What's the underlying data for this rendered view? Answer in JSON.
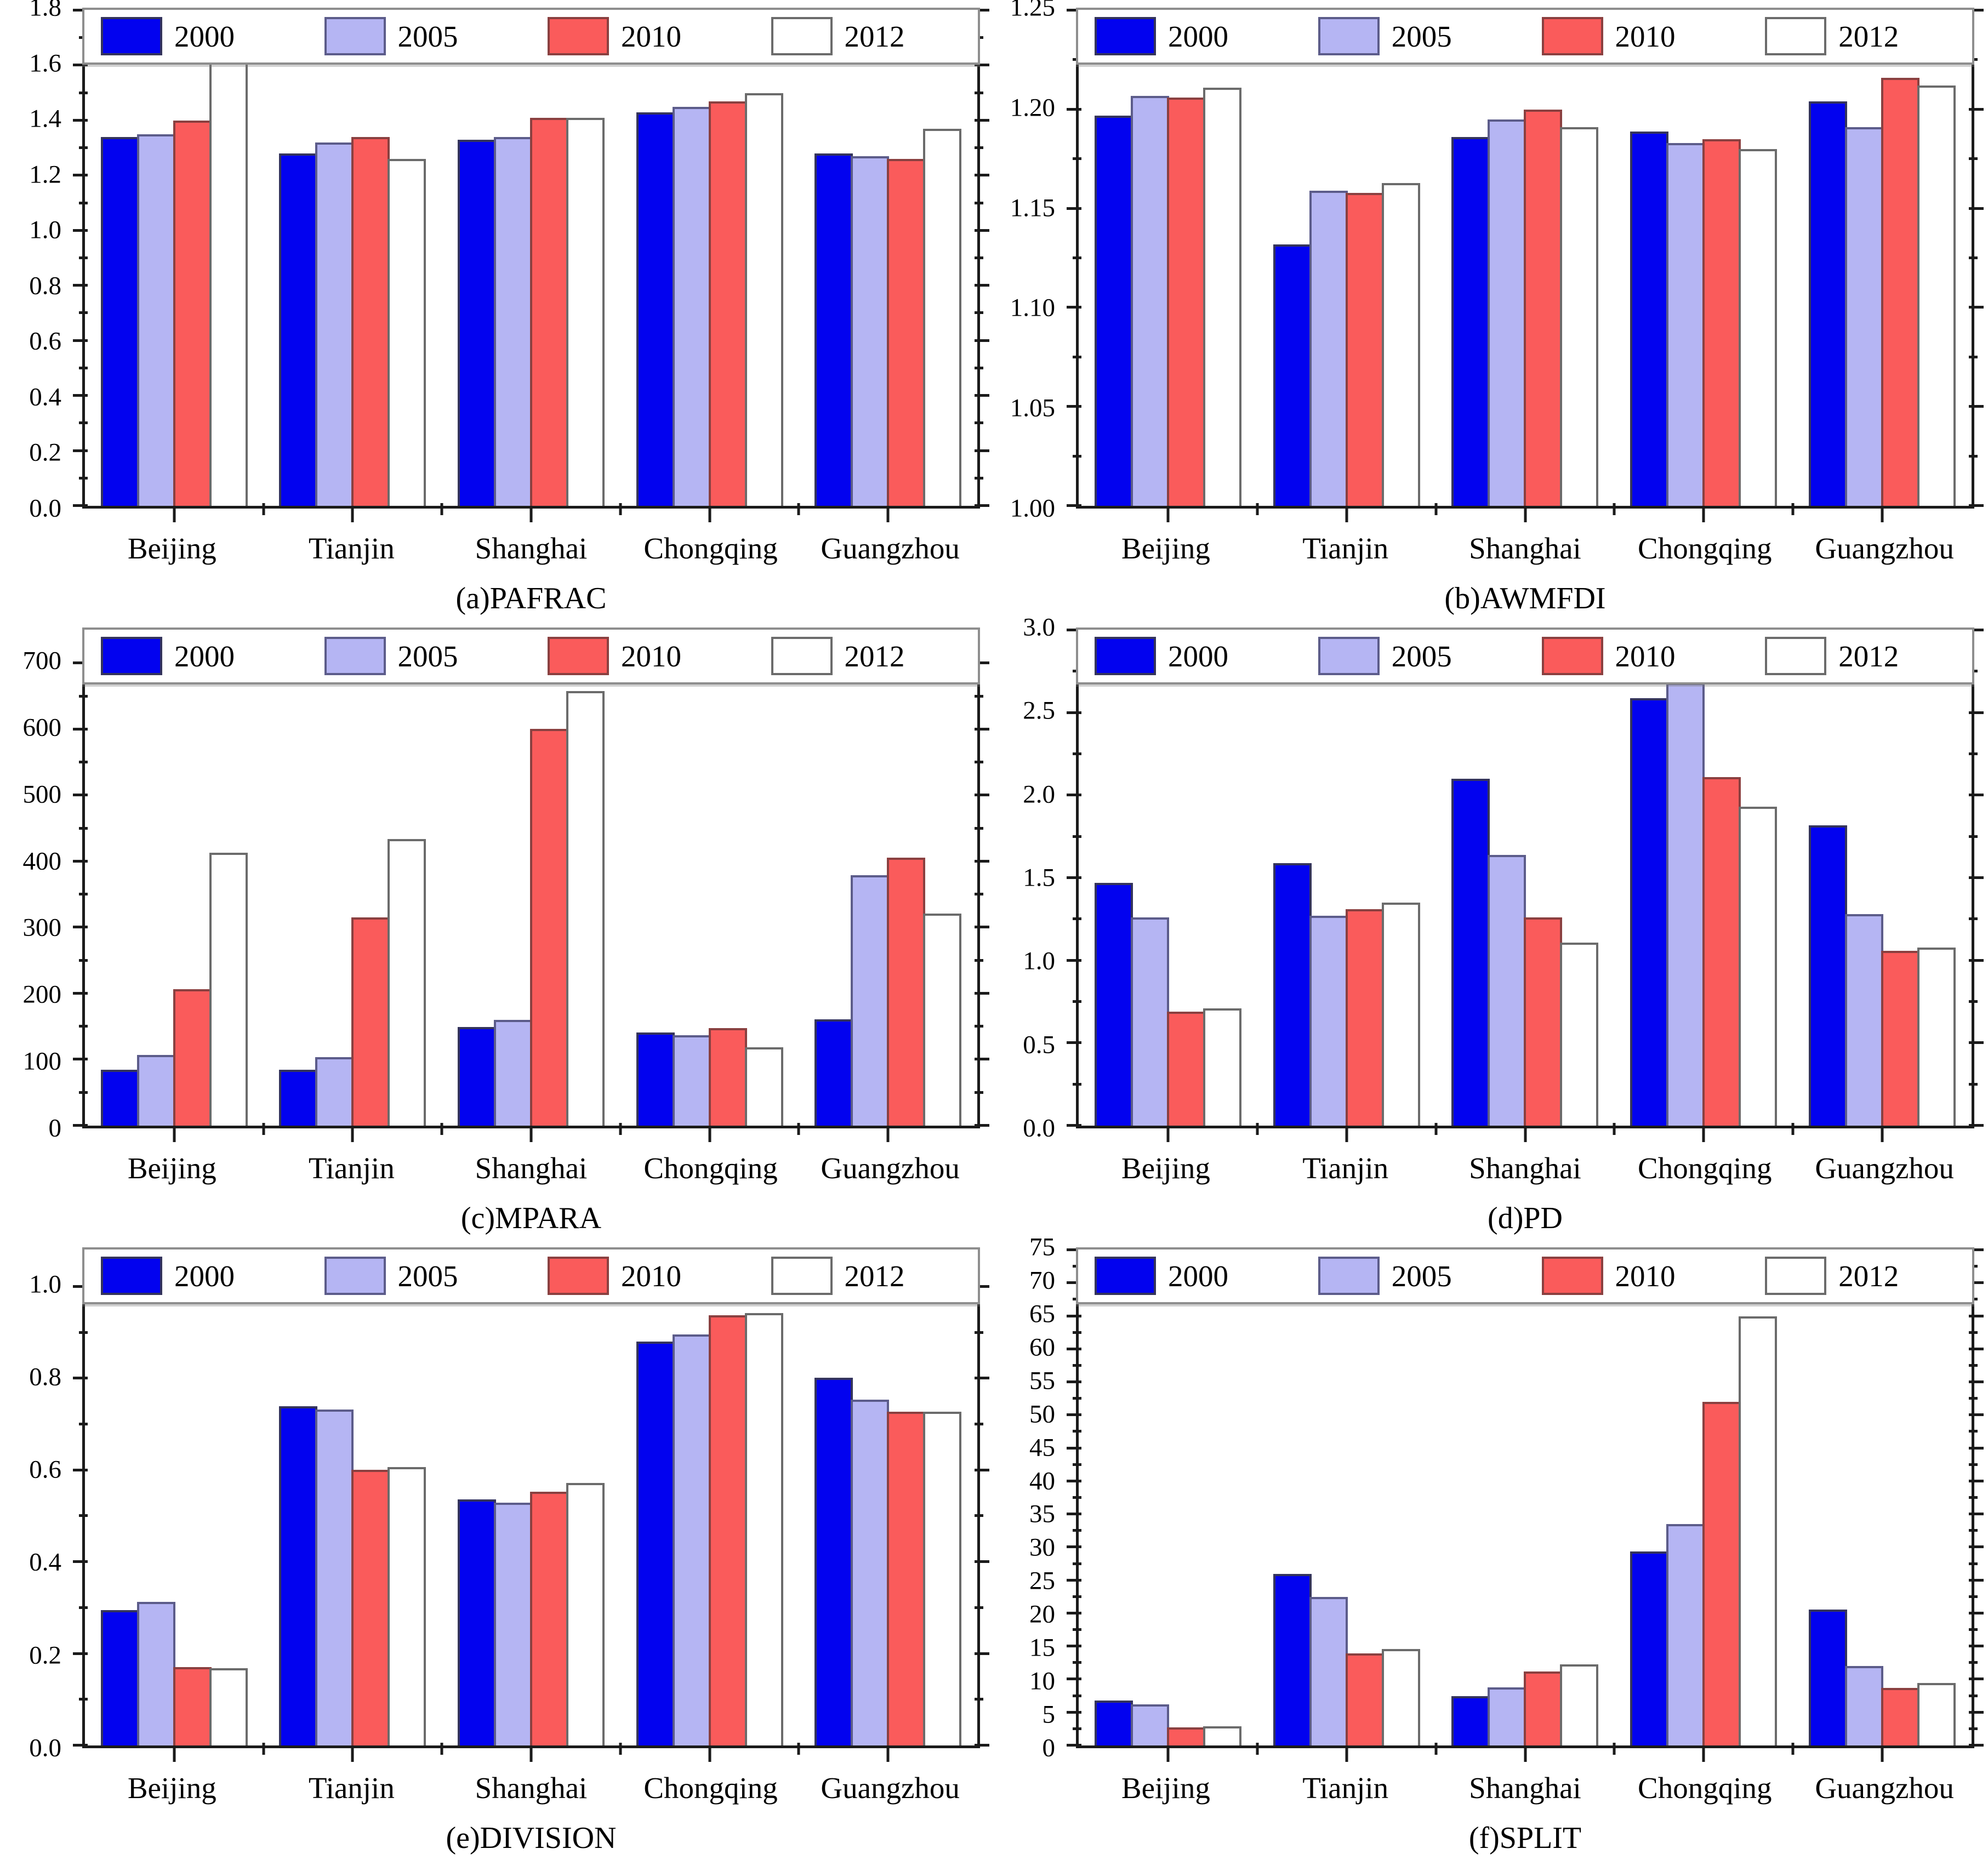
{
  "figure": {
    "background": "#ffffff",
    "axis_color": "#1b1b1b",
    "categories": [
      "Beijing",
      "Tianjin",
      "Shanghai",
      "Chongqing",
      "Guangzhou"
    ],
    "years": [
      "2000",
      "2005",
      "2010",
      "2012"
    ]
  },
  "legend": {
    "position": "top-inside-full-width",
    "items": [
      {
        "label": "2000",
        "fill": "#0202EF",
        "border": "#34345c"
      },
      {
        "label": "2005",
        "fill": "#B5B5F3",
        "border": "#5c5c8a"
      },
      {
        "label": "2010",
        "fill": "#FA5B5B",
        "border": "#8a4040"
      },
      {
        "label": "2012",
        "fill": "#FFFFFF",
        "border": "#6b6b6b"
      }
    ]
  },
  "chart_data": [
    {
      "id": "a",
      "type": "bar",
      "title": "(a)PAFRAC",
      "categories": [
        "Beijing",
        "Tianjin",
        "Shanghai",
        "Chongqing",
        "Guangzhou"
      ],
      "series": [
        {
          "name": "2000",
          "values": [
            1.34,
            1.28,
            1.33,
            1.43,
            1.28
          ]
        },
        {
          "name": "2005",
          "values": [
            1.35,
            1.32,
            1.34,
            1.45,
            1.27
          ]
        },
        {
          "name": "2010",
          "values": [
            1.4,
            1.34,
            1.41,
            1.47,
            1.26
          ]
        },
        {
          "name": "2012",
          "values": [
            1.62,
            1.26,
            1.41,
            1.5,
            1.37
          ]
        }
      ],
      "ylim": [
        0,
        1.8
      ],
      "ytick_max": 1.8,
      "ytick_step": 0.2,
      "y_decimals": 1,
      "grid": false
    },
    {
      "id": "b",
      "type": "bar",
      "title": "(b)AWMFDI",
      "categories": [
        "Beijing",
        "Tianjin",
        "Shanghai",
        "Chongqing",
        "Guangzhou"
      ],
      "series": [
        {
          "name": "2000",
          "values": [
            1.197,
            1.132,
            1.186,
            1.189,
            1.204
          ]
        },
        {
          "name": "2005",
          "values": [
            1.207,
            1.159,
            1.195,
            1.183,
            1.191
          ]
        },
        {
          "name": "2010",
          "values": [
            1.206,
            1.158,
            1.2,
            1.185,
            1.216
          ]
        },
        {
          "name": "2012",
          "values": [
            1.211,
            1.163,
            1.191,
            1.18,
            1.212
          ]
        }
      ],
      "ylim": [
        1.0,
        1.25
      ],
      "ytick_max": 1.25,
      "ytick_step": 0.05,
      "y_decimals": 2,
      "grid": false
    },
    {
      "id": "c",
      "type": "bar",
      "title": "(c)MPARA",
      "categories": [
        "Beijing",
        "Tianjin",
        "Shanghai",
        "Chongqing",
        "Guangzhou"
      ],
      "series": [
        {
          "name": "2000",
          "values": [
            85,
            85,
            149,
            141,
            161
          ]
        },
        {
          "name": "2005",
          "values": [
            107,
            104,
            160,
            137,
            379
          ]
        },
        {
          "name": "2010",
          "values": [
            207,
            315,
            601,
            148,
            406
          ]
        },
        {
          "name": "2012",
          "values": [
            413,
            434,
            658,
            119,
            321
          ]
        }
      ],
      "ylim": [
        0,
        750
      ],
      "ytick_max": 700,
      "ytick_step": 100,
      "y_decimals": 0,
      "grid": false
    },
    {
      "id": "d",
      "type": "bar",
      "title": "(d)PD",
      "categories": [
        "Beijing",
        "Tianjin",
        "Shanghai",
        "Chongqing",
        "Guangzhou"
      ],
      "series": [
        {
          "name": "2000",
          "values": [
            1.47,
            1.59,
            2.1,
            2.59,
            1.82
          ]
        },
        {
          "name": "2005",
          "values": [
            1.26,
            1.27,
            1.64,
            2.68,
            1.28
          ]
        },
        {
          "name": "2010",
          "values": [
            0.69,
            1.31,
            1.26,
            2.11,
            1.06
          ]
        },
        {
          "name": "2012",
          "values": [
            0.71,
            1.35,
            1.11,
            1.93,
            1.08
          ]
        }
      ],
      "ylim": [
        0,
        3.0
      ],
      "ytick_max": 3.0,
      "ytick_step": 0.5,
      "y_decimals": 1,
      "grid": false
    },
    {
      "id": "e",
      "type": "bar",
      "title": "(e)DIVISION",
      "categories": [
        "Beijing",
        "Tianjin",
        "Shanghai",
        "Chongqing",
        "Guangzhou"
      ],
      "series": [
        {
          "name": "2000",
          "values": [
            0.295,
            0.74,
            0.536,
            0.881,
            0.802
          ]
        },
        {
          "name": "2005",
          "values": [
            0.313,
            0.732,
            0.529,
            0.896,
            0.754
          ]
        },
        {
          "name": "2010",
          "values": [
            0.171,
            0.601,
            0.553,
            0.938,
            0.727
          ]
        },
        {
          "name": "2012",
          "values": [
            0.168,
            0.607,
            0.572,
            0.943,
            0.728
          ]
        }
      ],
      "ylim": [
        0,
        1.08
      ],
      "ytick_max": 1.0,
      "ytick_step": 0.2,
      "y_decimals": 1,
      "grid": false
    },
    {
      "id": "f",
      "type": "bar",
      "title": "(f)SPLIT",
      "categories": [
        "Beijing",
        "Tianjin",
        "Shanghai",
        "Chongqing",
        "Guangzhou"
      ],
      "series": [
        {
          "name": "2000",
          "values": [
            6.8,
            26.0,
            7.5,
            29.4,
            20.6
          ]
        },
        {
          "name": "2005",
          "values": [
            6.2,
            22.5,
            8.8,
            33.5,
            12.0
          ]
        },
        {
          "name": "2010",
          "values": [
            2.7,
            13.9,
            11.2,
            52.0,
            8.7
          ]
        },
        {
          "name": "2012",
          "values": [
            2.9,
            14.6,
            12.3,
            65.0,
            9.5
          ]
        }
      ],
      "ylim": [
        0,
        75
      ],
      "ytick_max": 75,
      "ytick_step": 5,
      "y_decimals": 0,
      "grid": false
    }
  ]
}
